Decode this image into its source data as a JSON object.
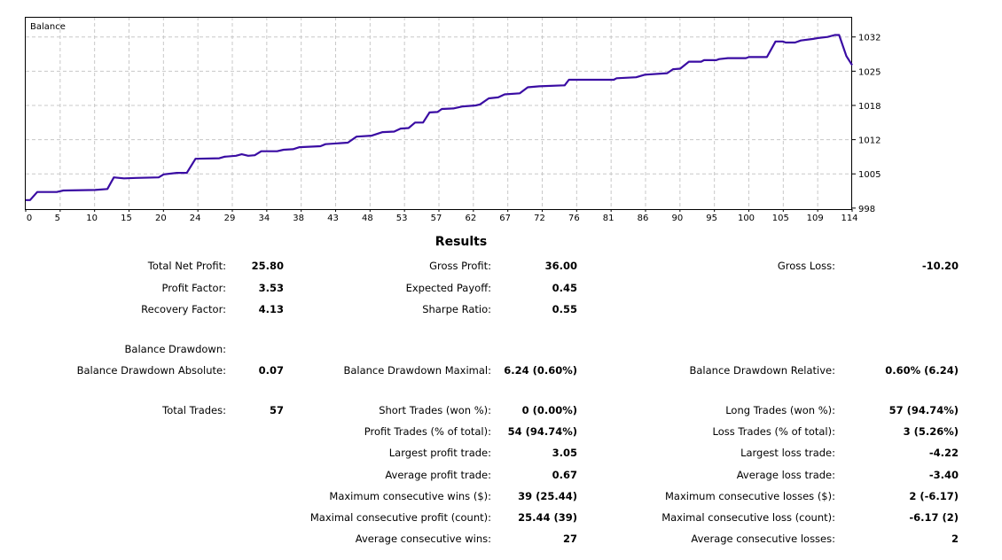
{
  "chart_data": {
    "type": "line",
    "title": "Balance",
    "xlabel": "",
    "ylabel": "",
    "xlim": [
      0,
      114.4
    ],
    "ylim": [
      997.8,
      1036
    ],
    "grid": true,
    "x_ticks": [
      0,
      5,
      10,
      15,
      20,
      24,
      29,
      34,
      38,
      43,
      48,
      53,
      57,
      62,
      67,
      72,
      76,
      81,
      86,
      90,
      95,
      100,
      105,
      109,
      114
    ],
    "y_ticks": [
      {
        "value": 998,
        "label": "998"
      },
      {
        "value": 1004.8,
        "label": "1005"
      },
      {
        "value": 1011.6,
        "label": "1012"
      },
      {
        "value": 1018.4,
        "label": "1018"
      },
      {
        "value": 1025.2,
        "label": "1025"
      },
      {
        "value": 1032,
        "label": "1032"
      }
    ],
    "series": [
      {
        "name": "Balance",
        "color": "#3a0ca3",
        "points": [
          [
            0,
            999.6
          ],
          [
            0.6,
            999.6
          ],
          [
            1.6,
            1001.2
          ],
          [
            4.3,
            1001.2
          ],
          [
            5.2,
            1001.5
          ],
          [
            9.6,
            1001.6
          ],
          [
            11.3,
            1001.8
          ],
          [
            12.2,
            1004.1
          ],
          [
            13.6,
            1003.9
          ],
          [
            15.3,
            1004.0
          ],
          [
            18.4,
            1004.1
          ],
          [
            19.1,
            1004.7
          ],
          [
            20.9,
            1005.0
          ],
          [
            22.3,
            1005.0
          ],
          [
            23.5,
            1007.8
          ],
          [
            26.8,
            1007.9
          ],
          [
            27.5,
            1008.2
          ],
          [
            29.1,
            1008.4
          ],
          [
            29.9,
            1008.7
          ],
          [
            30.8,
            1008.4
          ],
          [
            31.7,
            1008.5
          ],
          [
            32.6,
            1009.3
          ],
          [
            34.8,
            1009.3
          ],
          [
            35.7,
            1009.6
          ],
          [
            37,
            1009.7
          ],
          [
            37.9,
            1010.1
          ],
          [
            40.8,
            1010.3
          ],
          [
            41.5,
            1010.7
          ],
          [
            44.6,
            1011.0
          ],
          [
            45.8,
            1012.2
          ],
          [
            47.9,
            1012.4
          ],
          [
            49.4,
            1013.1
          ],
          [
            51,
            1013.2
          ],
          [
            51.9,
            1013.8
          ],
          [
            53,
            1013.9
          ],
          [
            53.9,
            1015.0
          ],
          [
            55,
            1015.0
          ],
          [
            55.9,
            1017.0
          ],
          [
            57,
            1017.1
          ],
          [
            57.6,
            1017.7
          ],
          [
            59.2,
            1017.8
          ],
          [
            60.5,
            1018.2
          ],
          [
            62.3,
            1018.4
          ],
          [
            62.9,
            1018.6
          ],
          [
            64.1,
            1019.8
          ],
          [
            65.4,
            1020.0
          ],
          [
            66.3,
            1020.6
          ],
          [
            68.4,
            1020.8
          ],
          [
            69.5,
            1022.0
          ],
          [
            71.1,
            1022.2
          ],
          [
            74.6,
            1022.4
          ],
          [
            75.2,
            1023.5
          ],
          [
            81.4,
            1023.5
          ],
          [
            81.8,
            1023.8
          ],
          [
            84.5,
            1024.0
          ],
          [
            85.7,
            1024.5
          ],
          [
            88.8,
            1024.8
          ],
          [
            89.6,
            1025.6
          ],
          [
            90.6,
            1025.7
          ],
          [
            91.8,
            1027.1
          ],
          [
            93.5,
            1027.1
          ],
          [
            93.9,
            1027.4
          ],
          [
            95.6,
            1027.4
          ],
          [
            96,
            1027.6
          ],
          [
            97.2,
            1027.8
          ],
          [
            99.7,
            1027.8
          ],
          [
            100.1,
            1028.0
          ],
          [
            102.6,
            1028.0
          ],
          [
            103.8,
            1031.1
          ],
          [
            104.8,
            1031.1
          ],
          [
            105.2,
            1030.9
          ],
          [
            106.5,
            1030.9
          ],
          [
            107.3,
            1031.3
          ],
          [
            108.9,
            1031.6
          ],
          [
            109.7,
            1031.8
          ],
          [
            111,
            1032.0
          ],
          [
            112,
            1032.4
          ],
          [
            112.6,
            1032.4
          ],
          [
            113.6,
            1028.2
          ],
          [
            114.4,
            1026.4
          ]
        ]
      }
    ]
  },
  "results": {
    "title": "Results",
    "total_net_profit": {
      "label": "Total Net Profit:",
      "value": "25.80"
    },
    "gross_profit": {
      "label": "Gross Profit:",
      "value": "36.00"
    },
    "gross_loss": {
      "label": "Gross Loss:",
      "value": "-10.20"
    },
    "profit_factor": {
      "label": "Profit Factor:",
      "value": "3.53"
    },
    "expected_payoff": {
      "label": "Expected Payoff:",
      "value": "0.45"
    },
    "recovery_factor": {
      "label": "Recovery Factor:",
      "value": "4.13"
    },
    "sharpe_ratio": {
      "label": "Sharpe Ratio:",
      "value": "0.55"
    },
    "balance_drawdown": {
      "label": "Balance Drawdown:"
    },
    "bd_absolute": {
      "label": "Balance Drawdown Absolute:",
      "value": "0.07"
    },
    "bd_maximal": {
      "label": "Balance Drawdown Maximal:",
      "value": "6.24 (0.60%)"
    },
    "bd_relative": {
      "label": "Balance Drawdown Relative:",
      "value": "0.60% (6.24)"
    },
    "total_trades": {
      "label": "Total Trades:",
      "value": "57"
    },
    "short_trades": {
      "label": "Short Trades (won %):",
      "value": "0 (0.00%)"
    },
    "long_trades": {
      "label": "Long Trades (won %):",
      "value": "57 (94.74%)"
    },
    "profit_trades": {
      "label": "Profit Trades (% of total):",
      "value": "54 (94.74%)"
    },
    "loss_trades": {
      "label": "Loss Trades (% of total):",
      "value": "3 (5.26%)"
    },
    "largest_profit": {
      "label": "Largest profit trade:",
      "value": "3.05"
    },
    "largest_loss": {
      "label": "Largest loss trade:",
      "value": "-4.22"
    },
    "average_profit": {
      "label": "Average profit trade:",
      "value": "0.67"
    },
    "average_loss": {
      "label": "Average loss trade:",
      "value": "-3.40"
    },
    "max_consec_wins": {
      "label": "Maximum consecutive wins ($):",
      "value": "39 (25.44)"
    },
    "max_consec_losses": {
      "label": "Maximum consecutive losses ($):",
      "value": "2 (-6.17)"
    },
    "maximal_consec_profit": {
      "label": "Maximal consecutive profit (count):",
      "value": "25.44 (39)"
    },
    "maximal_consec_loss": {
      "label": "Maximal consecutive loss (count):",
      "value": "-6.17 (2)"
    },
    "avg_consec_wins": {
      "label": "Average consecutive wins:",
      "value": "27"
    },
    "avg_consec_losses": {
      "label": "Average consecutive losses:",
      "value": "2"
    }
  }
}
